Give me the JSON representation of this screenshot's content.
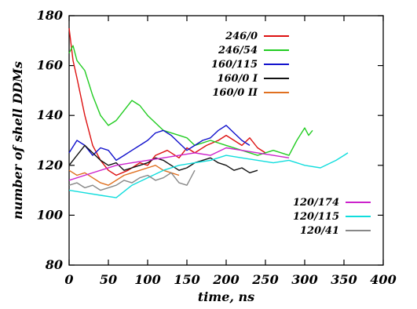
{
  "chart_data": {
    "type": "line",
    "title": "",
    "xlabel": "time, ns",
    "ylabel": "number of shell DDMs",
    "xlim": [
      0,
      400
    ],
    "ylim": [
      80,
      180
    ],
    "xticks": [
      0,
      50,
      100,
      150,
      200,
      250,
      300,
      350,
      400
    ],
    "xtick_labels": [
      "0",
      "50",
      "100",
      "150",
      "200",
      "250",
      "300",
      "350",
      "400"
    ],
    "yticks": [
      80,
      100,
      120,
      140,
      160,
      180
    ],
    "ytick_labels": [
      "80",
      "100",
      "120",
      "140",
      "160",
      "180"
    ],
    "grid": false,
    "legends": [
      {
        "placement": "top-right",
        "entries": [
          "246/0",
          "246/54",
          "160/115",
          "160/0 I",
          "160/0 II"
        ]
      },
      {
        "placement": "bottom-right",
        "entries": [
          "120/174",
          "120/115",
          "120/41"
        ]
      }
    ],
    "series": [
      {
        "name": "246/0",
        "color": "#dd1111",
        "x": [
          0,
          5,
          10,
          20,
          30,
          40,
          50,
          60,
          75,
          90,
          100,
          110,
          125,
          140,
          150,
          160,
          175,
          190,
          200,
          210,
          220,
          230,
          240,
          250
        ],
        "y": [
          175,
          162,
          155,
          140,
          128,
          122,
          118,
          116,
          118,
          121,
          120,
          124,
          126,
          123,
          127,
          125,
          128,
          130,
          132,
          130,
          128,
          131,
          127,
          125
        ]
      },
      {
        "name": "246/54",
        "color": "#22cc22",
        "x": [
          0,
          5,
          10,
          20,
          30,
          40,
          50,
          60,
          70,
          80,
          90,
          100,
          120,
          140,
          150,
          160,
          180,
          200,
          220,
          240,
          260,
          280,
          290,
          300,
          305,
          310
        ],
        "y": [
          165,
          168,
          162,
          158,
          148,
          140,
          136,
          138,
          142,
          146,
          144,
          140,
          134,
          132,
          131,
          128,
          130,
          128,
          126,
          124,
          126,
          124,
          130,
          135,
          132,
          134
        ]
      },
      {
        "name": "160/115",
        "color": "#1111cc",
        "x": [
          0,
          10,
          20,
          30,
          40,
          50,
          60,
          70,
          80,
          90,
          100,
          110,
          120,
          130,
          140,
          150,
          160,
          170,
          180,
          190,
          200,
          210,
          220,
          230
        ],
        "y": [
          125,
          130,
          128,
          124,
          127,
          126,
          122,
          124,
          126,
          128,
          130,
          133,
          134,
          132,
          129,
          126,
          128,
          130,
          131,
          134,
          136,
          133,
          130,
          128
        ]
      },
      {
        "name": "160/0 I",
        "color": "#111111",
        "x": [
          0,
          10,
          20,
          30,
          40,
          50,
          60,
          70,
          80,
          90,
          100,
          110,
          120,
          130,
          140,
          150,
          160,
          170,
          180,
          190,
          200,
          210,
          220,
          230,
          240
        ],
        "y": [
          120,
          124,
          128,
          125,
          122,
          120,
          121,
          118,
          119,
          120,
          121,
          123,
          122,
          120,
          118,
          119,
          121,
          122,
          123,
          121,
          120,
          118,
          119,
          117,
          118
        ]
      },
      {
        "name": "160/0 II",
        "color": "#e07020",
        "x": [
          0,
          10,
          20,
          30,
          40,
          50,
          60,
          70,
          80,
          90,
          100,
          110,
          120,
          130,
          140
        ],
        "y": [
          118,
          116,
          117,
          115,
          113,
          112,
          114,
          116,
          117,
          118,
          119,
          120,
          118,
          117,
          116
        ]
      },
      {
        "name": "120/174",
        "color": "#cc22cc",
        "x": [
          0,
          20,
          40,
          60,
          80,
          100,
          120,
          140,
          160,
          180,
          200,
          220,
          240,
          260,
          280
        ],
        "y": [
          114,
          116,
          118,
          120,
          121,
          122,
          123,
          124,
          125,
          124,
          127,
          126,
          125,
          124,
          123
        ]
      },
      {
        "name": "120/115",
        "color": "#11dddd",
        "x": [
          0,
          20,
          40,
          60,
          80,
          100,
          120,
          140,
          160,
          180,
          200,
          220,
          240,
          260,
          280,
          300,
          320,
          340,
          350,
          355
        ],
        "y": [
          110,
          109,
          108,
          107,
          112,
          115,
          118,
          120,
          121,
          122,
          124,
          123,
          122,
          121,
          122,
          120,
          119,
          122,
          124,
          125
        ]
      },
      {
        "name": "120/41",
        "color": "#888888",
        "x": [
          0,
          10,
          20,
          30,
          40,
          50,
          60,
          70,
          80,
          90,
          100,
          110,
          120,
          130,
          140,
          150,
          160
        ],
        "y": [
          112,
          113,
          111,
          112,
          110,
          111,
          112,
          114,
          113,
          115,
          116,
          114,
          115,
          117,
          113,
          112,
          118
        ]
      }
    ]
  }
}
